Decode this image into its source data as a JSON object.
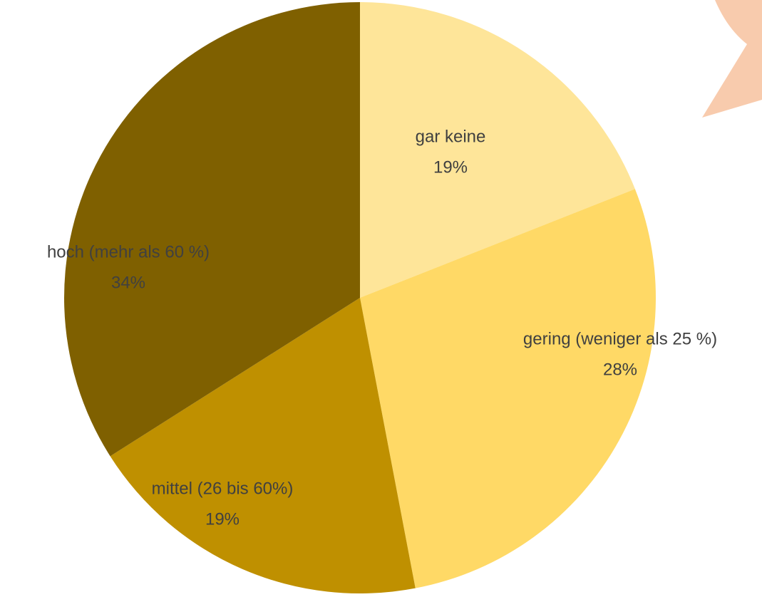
{
  "chart_data": {
    "type": "pie",
    "categories": [
      "gar keine",
      "gering (weniger als 25 %)",
      "mittel (26 bis 60%)",
      "hoch (mehr als 60 %)"
    ],
    "values": [
      19,
      28,
      19,
      34
    ],
    "value_labels": [
      "19%",
      "28%",
      "19%",
      "34%"
    ],
    "colors": [
      "#fee599",
      "#ffd966",
      "#bf9000",
      "#7f6000"
    ]
  }
}
